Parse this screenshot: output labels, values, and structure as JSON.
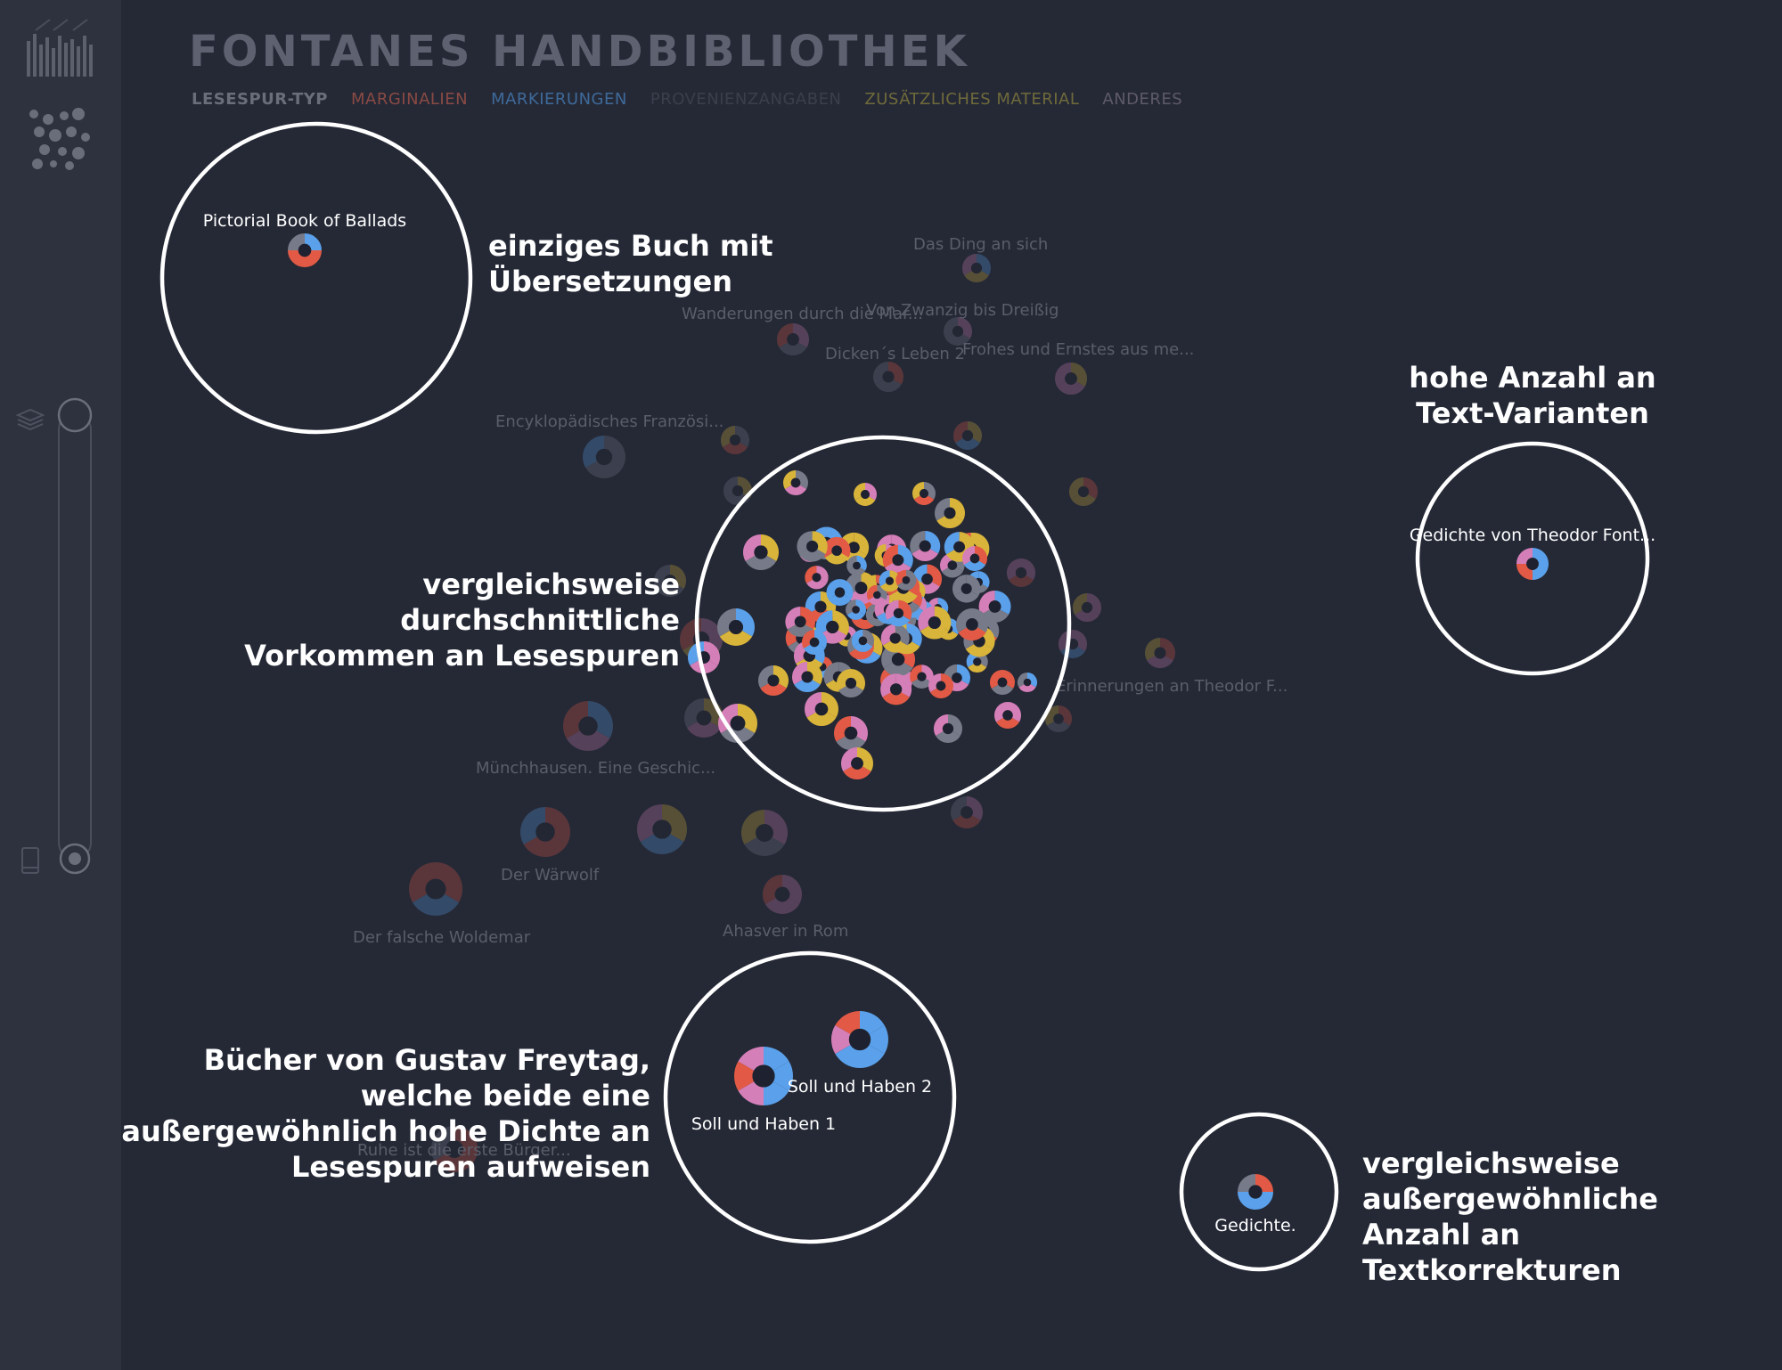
{
  "header": {
    "title": "FONTANES HANDBIBLIOTHEK",
    "legend_title": "LESESPUR-TYP",
    "legend": [
      {
        "label": "MARGINALIEN",
        "color": "#8a4a44"
      },
      {
        "label": "MARKIERUNGEN",
        "color": "#3e6a9a"
      },
      {
        "label": "PROVENIENZANGABEN",
        "color": "#3b3f4c"
      },
      {
        "label": "ZUSÄTZLICHES MATERIAL",
        "color": "#6f6a3a"
      },
      {
        "label": "ANDERES",
        "color": "#5e5a68"
      }
    ]
  },
  "sidebar": {
    "icons": [
      "shelf-view-icon",
      "cluster-view-icon",
      "books-stack-icon",
      "single-book-icon"
    ]
  },
  "colors": {
    "background": "#252936",
    "marginalien": "#e25a45",
    "markierungen": "#5aa0ea",
    "anderes": "#d57fb8",
    "zusaetzliches": "#d9b43a",
    "provenienz": "#777a88",
    "core": "#1e2230"
  },
  "dim_labels": [
    "Das Ding an sich",
    "Wanderungen durch die Mar...",
    "Von Zwanzig bis Dreißig",
    "Dicken´s Leben 2",
    "Frohes und Ernstes aus me...",
    "Encyklopädisches Französi...",
    "Erinnerungen an Theodor F...",
    "Münchhausen. Eine Geschic...",
    "Der Wärwolf",
    "Der falsche Woldemar",
    "Ahasver in Rom",
    "Ruhe ist die erste Bürger..."
  ],
  "highlight_labels": {
    "ballads": "Pictorial Book of Ballads",
    "gedichte_theodor": "Gedichte von Theodor Font...",
    "soll1": "Soll und Haben 1",
    "soll2": "Soll und Haben 2",
    "gedichte": "Gedichte."
  },
  "annotations": {
    "ballads": [
      "einziges Buch mit",
      "Übersetzungen"
    ],
    "varianten": [
      "hohe Anzahl an",
      "Text-Varianten"
    ],
    "durchschnitt": [
      "vergleichsweise durchschnittliche",
      "Vorkommen an Lesespuren"
    ],
    "freytag": [
      "Bücher von Gustav Freytag,",
      "welche beide eine",
      "außergewöhnlich hohe Dichte an",
      "Lesespuren aufweisen"
    ],
    "korrekturen": [
      "vergleichsweise",
      "außergewöhnliche",
      "Anzahl an Textkorrekturen"
    ]
  }
}
